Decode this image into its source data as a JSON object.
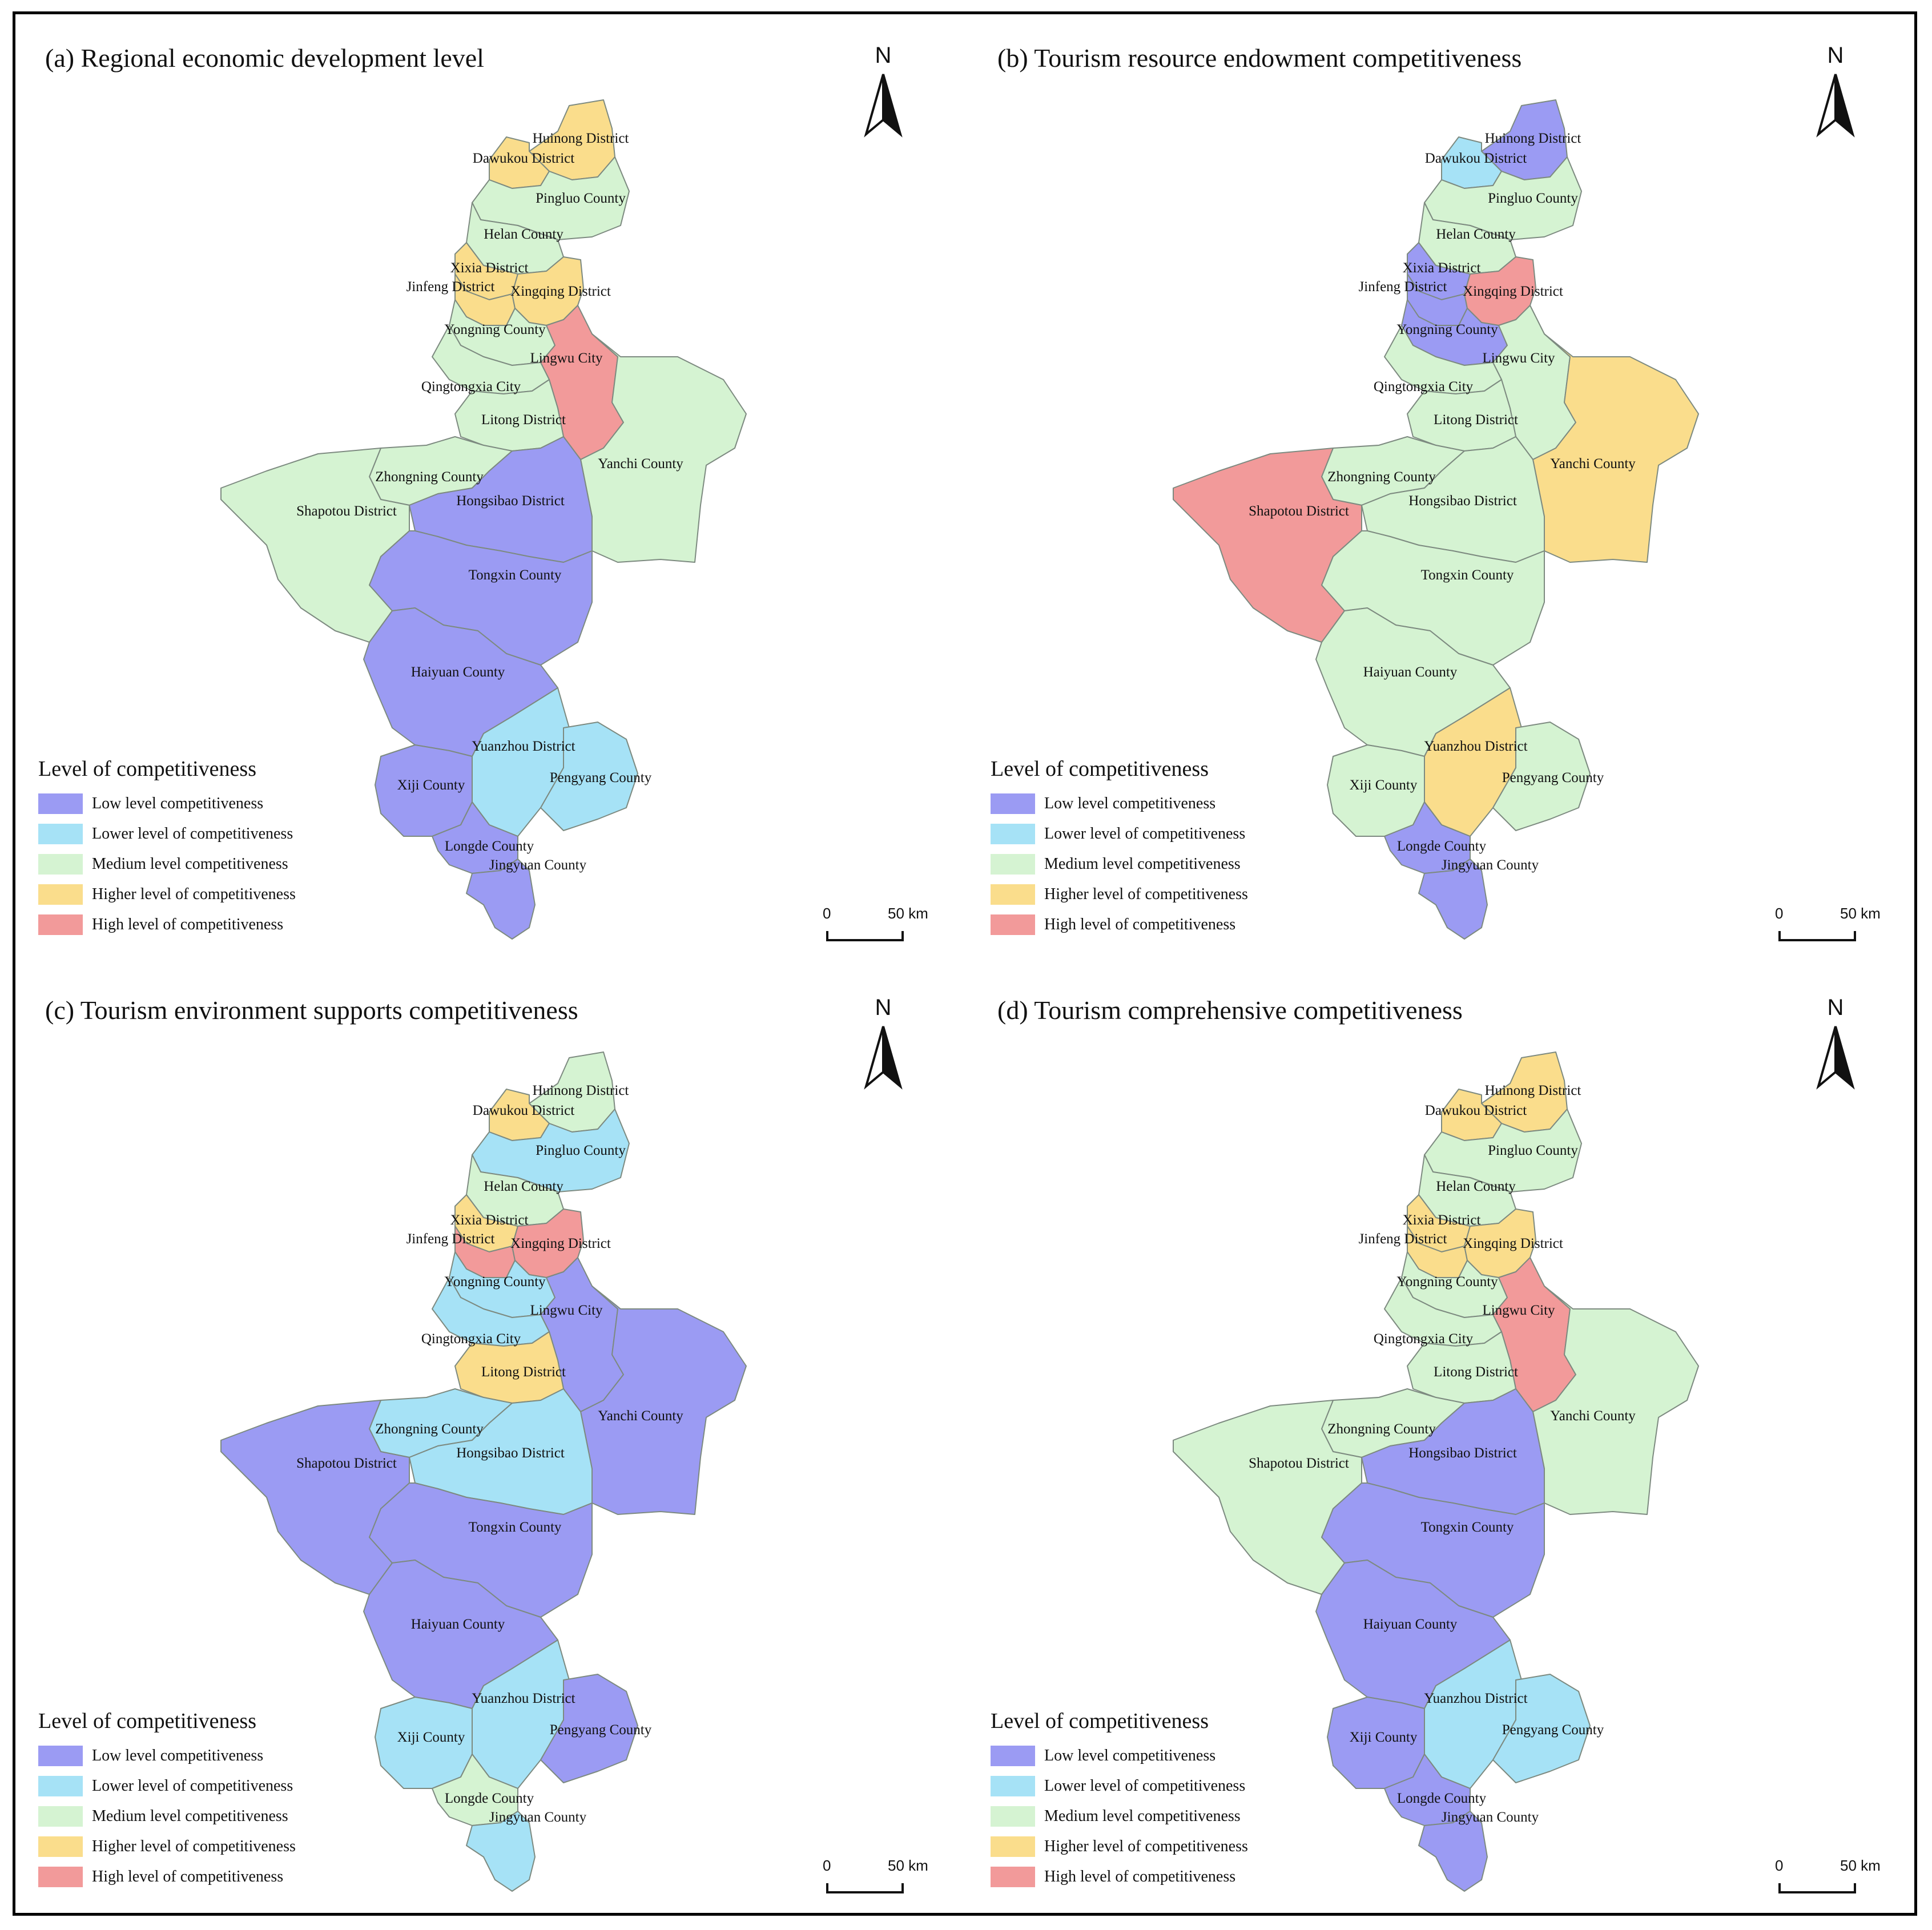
{
  "colors": {
    "low": "#9b9bf3",
    "lower": "#a6e2f6",
    "medium": "#d5f3d2",
    "higher": "#fadd8c",
    "high": "#f29a9a",
    "border": "#7d8a80"
  },
  "legend": {
    "title": "Level of competitiveness",
    "items": [
      {
        "key": "low",
        "label": "Low level competitiveness"
      },
      {
        "key": "lower",
        "label": "Lower level of competitiveness"
      },
      {
        "key": "medium",
        "label": "Medium level competitiveness"
      },
      {
        "key": "higher",
        "label": "Higher level of competitiveness"
      },
      {
        "key": "high",
        "label": "High level of competitiveness"
      }
    ]
  },
  "north_label": "N",
  "scale": {
    "zero": "0",
    "fifty": "50 km"
  },
  "district_labels": {
    "huinong": "Huinong District",
    "dawukou": "Dawukou District",
    "pingluo": "Pingluo County",
    "helan": "Helan County",
    "xixia": "Xixia District",
    "jinfeng": "Jinfeng District",
    "xingqing": "Xingqing District",
    "yongning": "Yongning County",
    "lingwu": "Lingwu City",
    "qingtongxia": "Qingtongxia City",
    "litong": "Litong District",
    "yanchi": "Yanchi County",
    "zhongning": "Zhongning County",
    "shapotou": "Shapotou District",
    "hongsibao": "Hongsibao District",
    "tongxin": "Tongxin County",
    "haiyuan": "Haiyuan County",
    "yuanzhou": "Yuanzhou District",
    "xiji": "Xiji County",
    "pengyang": "Pengyang County",
    "longde": "Longde County",
    "jingyuan": "Jingyuan County"
  },
  "panels": [
    {
      "title": "(a) Regional economic development level",
      "levels": {
        "huinong": "higher",
        "dawukou": "higher",
        "pingluo": "medium",
        "helan": "medium",
        "xixia": "higher",
        "jinfeng": "higher",
        "xingqing": "higher",
        "yongning": "medium",
        "lingwu": "high",
        "qingtongxia": "medium",
        "litong": "medium",
        "yanchi": "medium",
        "zhongning": "medium",
        "shapotou": "medium",
        "hongsibao": "low",
        "tongxin": "low",
        "haiyuan": "low",
        "yuanzhou": "lower",
        "xiji": "low",
        "pengyang": "lower",
        "longde": "low",
        "jingyuan": "low"
      }
    },
    {
      "title": "(b) Tourism resource endowment competitiveness",
      "levels": {
        "huinong": "low",
        "dawukou": "lower",
        "pingluo": "medium",
        "helan": "medium",
        "xixia": "low",
        "jinfeng": "low",
        "xingqing": "high",
        "yongning": "low",
        "lingwu": "medium",
        "qingtongxia": "medium",
        "litong": "medium",
        "yanchi": "higher",
        "zhongning": "medium",
        "shapotou": "high",
        "hongsibao": "medium",
        "tongxin": "medium",
        "haiyuan": "medium",
        "yuanzhou": "higher",
        "xiji": "medium",
        "pengyang": "medium",
        "longde": "low",
        "jingyuan": "low"
      }
    },
    {
      "title": "(c) Tourism environment supports competitiveness",
      "levels": {
        "huinong": "medium",
        "dawukou": "higher",
        "pingluo": "lower",
        "helan": "medium",
        "xixia": "higher",
        "jinfeng": "high",
        "xingqing": "high",
        "yongning": "lower",
        "lingwu": "low",
        "qingtongxia": "lower",
        "litong": "higher",
        "yanchi": "low",
        "zhongning": "lower",
        "shapotou": "low",
        "hongsibao": "lower",
        "tongxin": "low",
        "haiyuan": "low",
        "yuanzhou": "lower",
        "xiji": "lower",
        "pengyang": "low",
        "longde": "medium",
        "jingyuan": "lower"
      }
    },
    {
      "title": "(d) Tourism comprehensive competitiveness",
      "levels": {
        "huinong": "higher",
        "dawukou": "higher",
        "pingluo": "medium",
        "helan": "medium",
        "xixia": "higher",
        "jinfeng": "higher",
        "xingqing": "higher",
        "yongning": "medium",
        "lingwu": "high",
        "qingtongxia": "medium",
        "litong": "medium",
        "yanchi": "medium",
        "zhongning": "medium",
        "shapotou": "medium",
        "hongsibao": "low",
        "tongxin": "low",
        "haiyuan": "low",
        "yuanzhou": "lower",
        "xiji": "low",
        "pengyang": "lower",
        "longde": "low",
        "jingyuan": "low"
      }
    }
  ]
}
